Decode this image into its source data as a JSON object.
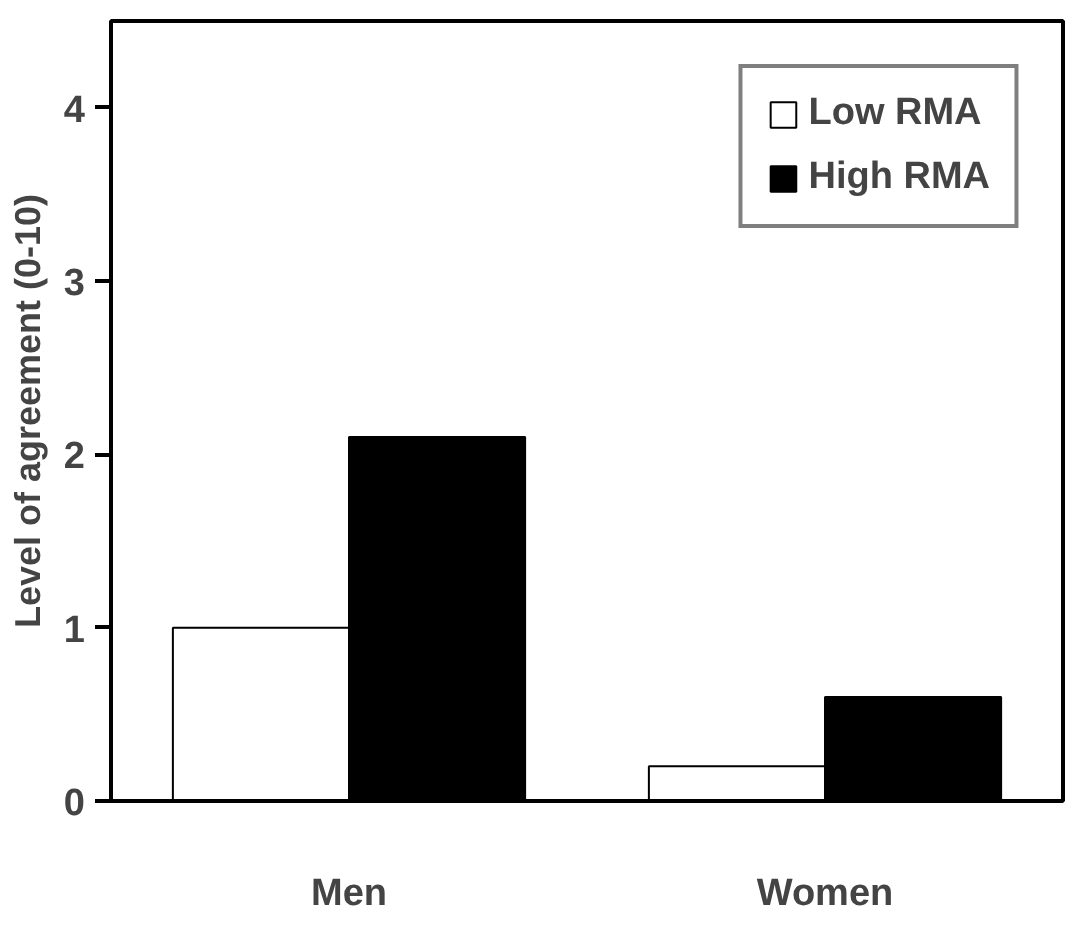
{
  "chart_data": {
    "type": "bar",
    "ylabel": "Level of agreement (0-10)",
    "categories": [
      "Men",
      "Women"
    ],
    "series": [
      {
        "name": "Low RMA",
        "color": "#ffffff",
        "values": [
          1.0,
          0.2
        ]
      },
      {
        "name": "High RMA",
        "color": "#000000",
        "values": [
          2.1,
          0.6
        ]
      }
    ],
    "ylim": [
      0,
      4.5
    ],
    "yticks": [
      0,
      1,
      2,
      3,
      4
    ],
    "grid": false,
    "legend": "top right"
  }
}
